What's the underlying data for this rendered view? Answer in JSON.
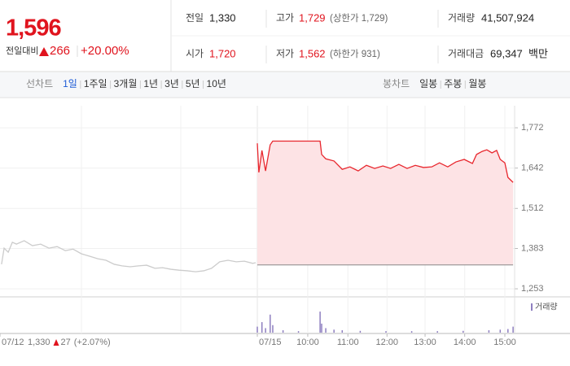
{
  "quote": {
    "price": "1,596",
    "change_label": "전일대비",
    "change": "266",
    "change_pct": "+20.00%"
  },
  "stats": [
    {
      "label": "전일",
      "value": "1,330"
    },
    {
      "label": "고가",
      "value": "1,729",
      "note": "(상한가 1,729)"
    },
    {
      "label": "거래량",
      "value": "41,507,924"
    },
    {
      "label": "시가",
      "value": "1,720"
    },
    {
      "label": "저가",
      "value": "1,562",
      "note": "(하한가 931)"
    },
    {
      "label": "거래대금",
      "value": "69,347",
      "unit": "백만"
    }
  ],
  "tabs": {
    "line_label": "선차트",
    "line": [
      "1일",
      "1주일",
      "3개월",
      "1년",
      "3년",
      "5년",
      "10년"
    ],
    "active_index": 0,
    "candle_label": "봉차트",
    "candle": [
      "일봉",
      "주봉",
      "월봉"
    ]
  },
  "chart_data": {
    "type": "line",
    "ylim": [
      1227,
      1843
    ],
    "yticks": [
      {
        "value": 1253,
        "label": "1,253"
      },
      {
        "value": 1383,
        "label": "1,383"
      },
      {
        "value": 1512,
        "label": "1,512"
      },
      {
        "value": 1642,
        "label": "1,642"
      },
      {
        "value": 1772,
        "label": "1,772"
      }
    ],
    "xlim": [
      0,
      100
    ],
    "xticks": [
      {
        "value": 0,
        "label": "07/12"
      },
      {
        "value": 50,
        "label": "07/15"
      },
      {
        "value": 59.8,
        "label": "10:00"
      },
      {
        "value": 67.6,
        "label": "11:00"
      },
      {
        "value": 75.2,
        "label": "12:00"
      },
      {
        "value": 82.6,
        "label": "13:00"
      },
      {
        "value": 90.3,
        "label": "14:00"
      },
      {
        "value": 98.1,
        "label": "15:00"
      }
    ],
    "baseline": 1330,
    "prior_annotation": {
      "close": "1,330",
      "change": "27",
      "pct": "(+2.07%)"
    },
    "series": [
      {
        "color": "#cccccc",
        "x": [
          0.3,
          0.8,
          1.6,
          2.4,
          3.2,
          4.7,
          6.3,
          7.9,
          9.5,
          11.1,
          12.7,
          14.2,
          15.8,
          17.4,
          19,
          20.6,
          22.2,
          23.7,
          25.3,
          26.9,
          28.5,
          30.1,
          31.6,
          33.2,
          34.8,
          36.4,
          38,
          39.6,
          41.1,
          42.7,
          44.3,
          45.9,
          47.5,
          49.1,
          49.7
        ],
        "values": [
          1332,
          1384,
          1371,
          1403,
          1397,
          1408,
          1392,
          1397,
          1384,
          1389,
          1376,
          1381,
          1366,
          1358,
          1350,
          1345,
          1332,
          1327,
          1324,
          1327,
          1329,
          1319,
          1321,
          1316,
          1313,
          1311,
          1308,
          1311,
          1319,
          1340,
          1345,
          1340,
          1342,
          1335,
          1337
        ]
      },
      {
        "color": "#e8262d",
        "fill": "#fde3e5",
        "x": [
          50,
          50.3,
          50.9,
          51.6,
          52.5,
          53,
          62.2,
          62.5,
          63.3,
          64.9,
          66.5,
          68,
          69.6,
          71.2,
          72.8,
          74.4,
          75.9,
          77.5,
          79.1,
          80.7,
          82.3,
          83.9,
          85.4,
          87,
          88.6,
          90.2,
          91.8,
          92.6,
          93.7,
          94.6,
          95.6,
          96.5,
          97.2,
          98.1,
          98.7,
          99.7
        ],
        "values": [
          1722,
          1628,
          1699,
          1633,
          1717,
          1729,
          1729,
          1686,
          1672,
          1665,
          1638,
          1646,
          1633,
          1651,
          1641,
          1649,
          1641,
          1654,
          1641,
          1651,
          1644,
          1646,
          1659,
          1646,
          1662,
          1670,
          1657,
          1686,
          1696,
          1701,
          1691,
          1699,
          1670,
          1659,
          1612,
          1596
        ]
      }
    ],
    "volume": {
      "name": "거래량",
      "color": "#8e7fc0",
      "ylim": [
        0,
        100
      ],
      "x": [
        50,
        50.9,
        51.6,
        52.5,
        53,
        55,
        58,
        62.2,
        62.5,
        63.3,
        64.9,
        66.5,
        70,
        75,
        80,
        85,
        90,
        95,
        97.2,
        98.7,
        99.7
      ],
      "values": [
        20,
        35,
        15,
        60,
        25,
        8,
        5,
        70,
        30,
        15,
        10,
        8,
        6,
        5,
        5,
        5,
        6,
        8,
        10,
        12,
        20
      ]
    }
  }
}
